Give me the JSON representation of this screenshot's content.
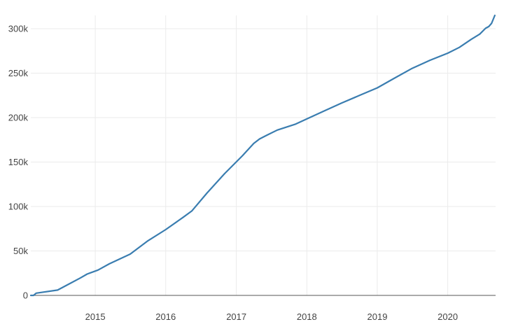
{
  "chart_data": {
    "type": "line",
    "title": "",
    "xlabel": "",
    "ylabel": "",
    "x_ticks": [
      "2015",
      "2016",
      "2017",
      "2018",
      "2019",
      "2020"
    ],
    "y_ticks": [
      "0",
      "50k",
      "100k",
      "150k",
      "200k",
      "250k",
      "300k"
    ],
    "y_tick_values": [
      0,
      50000,
      100000,
      150000,
      200000,
      250000,
      300000
    ],
    "xlim": [
      "2014-02-01",
      "2020-09-05"
    ],
    "ylim": [
      0,
      315000
    ],
    "grid": true,
    "colors": {
      "line": "#3a7db0",
      "grid": "#ebebeb",
      "zero_line": "#555555",
      "tick_text": "#444444"
    },
    "series": [
      {
        "x": [
          "2014-02-01",
          "2014-02-15",
          "2014-03-01",
          "2014-06-20",
          "2014-08-15",
          "2014-10-15",
          "2014-11-20",
          "2015-01-15",
          "2015-03-15",
          "2015-07-01",
          "2015-10-01",
          "2016-01-01",
          "2016-04-01",
          "2016-05-15",
          "2016-08-01",
          "2016-11-01",
          "2017-02-01",
          "2017-04-01",
          "2017-05-01",
          "2017-06-01",
          "2017-08-01",
          "2017-11-01",
          "2018-01-01",
          "2018-04-01",
          "2018-07-01",
          "2018-10-01",
          "2019-01-01",
          "2019-04-01",
          "2019-07-01",
          "2019-10-01",
          "2020-01-01",
          "2020-03-01",
          "2020-05-01",
          "2020-06-15",
          "2020-07-15",
          "2020-08-01",
          "2020-08-15",
          "2020-09-01"
        ],
        "y": [
          0,
          0,
          2500,
          6000,
          12500,
          19500,
          24000,
          28500,
          35500,
          46500,
          61500,
          74000,
          88000,
          95000,
          115000,
          137000,
          157000,
          171000,
          176000,
          179500,
          186000,
          192500,
          198500,
          207500,
          216500,
          225000,
          233500,
          244500,
          255500,
          264500,
          272500,
          279000,
          288000,
          294000,
          300500,
          302500,
          306000,
          315000
        ]
      }
    ]
  }
}
